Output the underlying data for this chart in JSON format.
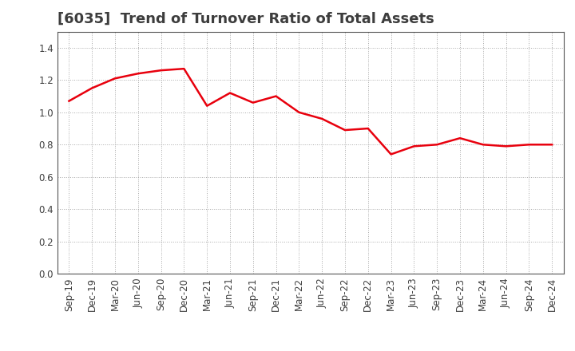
{
  "title": "[6035]  Trend of Turnover Ratio of Total Assets",
  "x_labels": [
    "Sep-19",
    "Dec-19",
    "Mar-20",
    "Jun-20",
    "Sep-20",
    "Dec-20",
    "Mar-21",
    "Jun-21",
    "Sep-21",
    "Dec-21",
    "Mar-22",
    "Jun-22",
    "Sep-22",
    "Dec-22",
    "Mar-23",
    "Jun-23",
    "Sep-23",
    "Dec-23",
    "Mar-24",
    "Jun-24",
    "Sep-24",
    "Dec-24"
  ],
  "y_values": [
    1.07,
    1.15,
    1.21,
    1.24,
    1.26,
    1.27,
    1.04,
    1.12,
    1.06,
    1.1,
    1.0,
    0.96,
    0.89,
    0.9,
    0.74,
    0.79,
    0.8,
    0.84,
    0.8,
    0.79,
    0.8,
    0.8
  ],
  "line_color": "#e8000d",
  "line_width": 1.8,
  "ylim": [
    0.0,
    1.5
  ],
  "yticks": [
    0.0,
    0.2,
    0.4,
    0.6,
    0.8,
    1.0,
    1.2,
    1.4
  ],
  "title_fontsize": 13,
  "title_color": "#3d3d3d",
  "tick_fontsize": 8.5,
  "tick_color": "#3d3d3d",
  "background_color": "#ffffff",
  "grid_color": "#aaaaaa",
  "plot_bg_color": "#ffffff"
}
